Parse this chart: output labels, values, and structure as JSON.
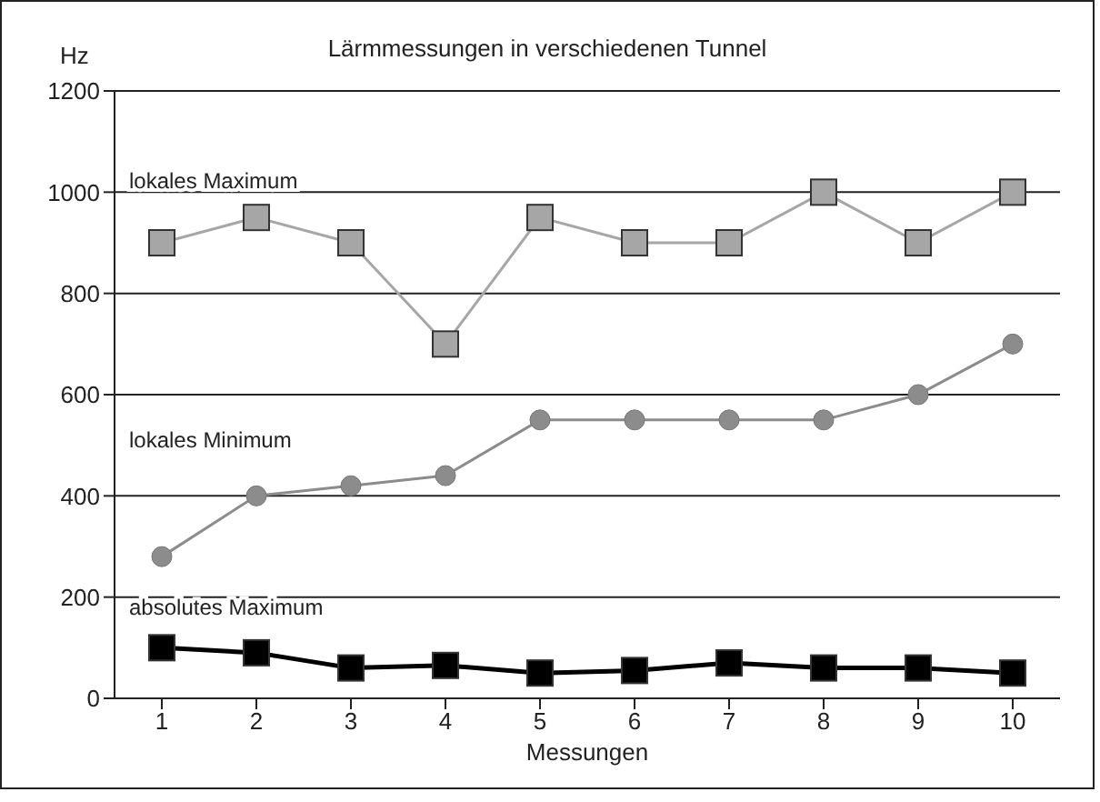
{
  "chart_data": {
    "type": "line",
    "title": "Lärmmessungen in verschiedenen Tunnel",
    "xlabel": "Messungen",
    "ylabel": "Hz",
    "categories": [
      "1",
      "2",
      "3",
      "4",
      "5",
      "6",
      "7",
      "8",
      "9",
      "10"
    ],
    "series": [
      {
        "name": "lokales Maximum",
        "color": "#a6a6a6",
        "marker": "square",
        "values": [
          900,
          950,
          900,
          700,
          950,
          900,
          900,
          1000,
          900,
          1000
        ]
      },
      {
        "name": "lokales Minimum",
        "color": "#8c8c8c",
        "marker": "circle",
        "values": [
          280,
          400,
          420,
          440,
          550,
          550,
          550,
          550,
          600,
          700
        ]
      },
      {
        "name": "absolutes Maximum",
        "color": "#000000",
        "marker": "square",
        "values": [
          100,
          90,
          60,
          65,
          50,
          55,
          70,
          60,
          60,
          50
        ]
      }
    ],
    "ylim": [
      0,
      1200
    ],
    "yticks": [
      0,
      200,
      400,
      600,
      800,
      1000,
      1200
    ],
    "grid": "y",
    "legend": false
  }
}
